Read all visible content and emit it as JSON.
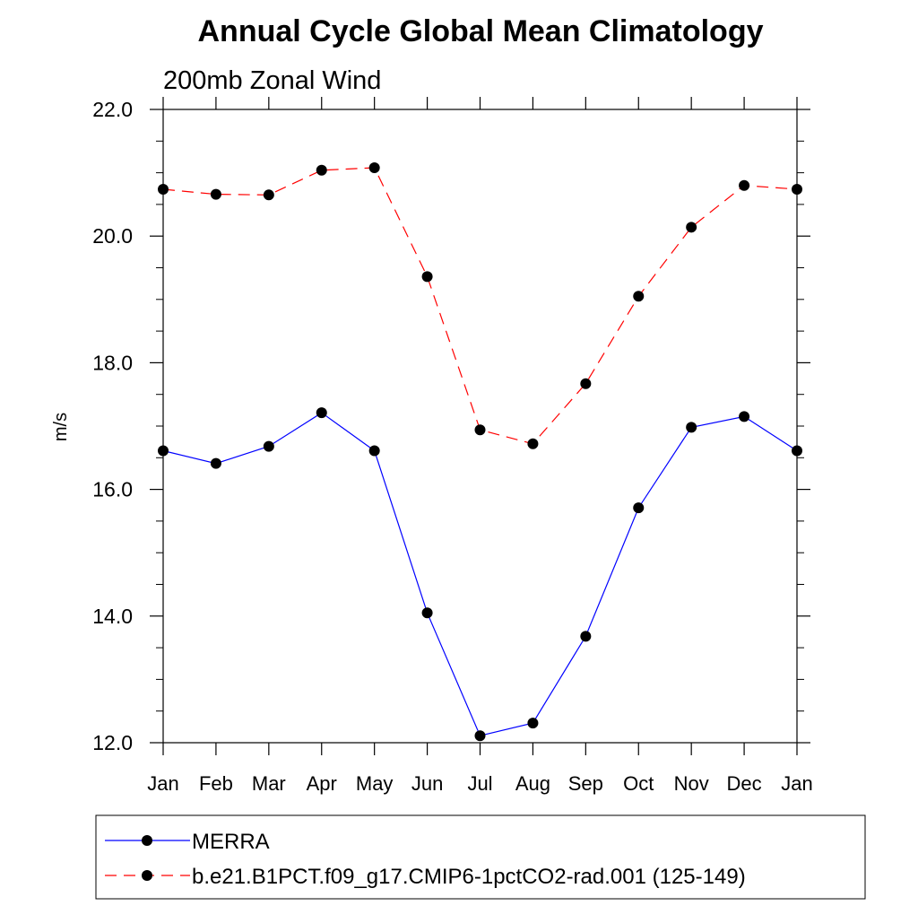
{
  "chart_data": {
    "type": "line",
    "title": "Annual Cycle Global Mean Climatology",
    "subtitle": "200mb Zonal Wind",
    "xlabel": "",
    "ylabel": "m/s",
    "ylim": [
      12.0,
      22.0
    ],
    "yticks": [
      "12.0",
      "14.0",
      "16.0",
      "18.0",
      "20.0",
      "22.0"
    ],
    "categories": [
      "Jan",
      "Feb",
      "Mar",
      "Apr",
      "May",
      "Jun",
      "Jul",
      "Aug",
      "Sep",
      "Oct",
      "Nov",
      "Dec",
      "Jan"
    ],
    "grid": false,
    "legend_position": "bottom",
    "series": [
      {
        "name": "MERRA",
        "color": "#0000ff",
        "dash": "solid",
        "marker": "filled-circle",
        "values": [
          16.61,
          16.41,
          16.68,
          17.21,
          16.61,
          14.05,
          12.11,
          12.31,
          13.68,
          15.71,
          16.98,
          17.15,
          16.61
        ]
      },
      {
        "name": "b.e21.B1PCT.f09_g17.CMIP6-1pctCO2-rad.001 (125-149)",
        "color": "#ff0000",
        "dash": "dashed",
        "marker": "filled-circle",
        "values": [
          20.74,
          20.66,
          20.65,
          21.04,
          21.08,
          19.36,
          16.94,
          16.72,
          17.67,
          19.05,
          20.14,
          20.8,
          20.74
        ]
      }
    ]
  }
}
